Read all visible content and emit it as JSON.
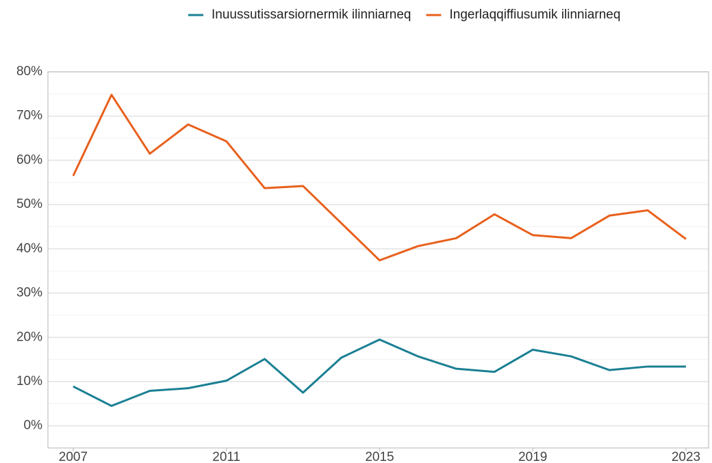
{
  "chart_data": {
    "type": "line",
    "x": [
      2007,
      2008,
      2009,
      2010,
      2011,
      2012,
      2013,
      2014,
      2015,
      2016,
      2017,
      2018,
      2019,
      2020,
      2021,
      2022,
      2023
    ],
    "series": [
      {
        "name": "Inuussutissarsiornermik ilinniarneq",
        "color": "#1a7f93",
        "values": [
          8.9,
          4.5,
          7.9,
          8.5,
          10.2,
          15.1,
          7.5,
          15.4,
          19.5,
          15.7,
          12.9,
          12.2,
          17.2,
          15.7,
          12.6,
          13.4,
          13.4
        ]
      },
      {
        "name": "Ingerlaqqiffiusumik ilinniarneq",
        "color": "#e8601c",
        "values": [
          56.5,
          74.8,
          61.5,
          68.1,
          64.3,
          53.7,
          54.2,
          45.8,
          37.4,
          40.6,
          42.4,
          47.8,
          43.1,
          42.4,
          47.5,
          48.7,
          42.2
        ]
      }
    ],
    "xlim": [
      2006.34,
      2023.59
    ],
    "xticks": [
      2007,
      2011,
      2015,
      2019,
      2023
    ],
    "ylim": [
      -5,
      80
    ],
    "yticks": [
      {
        "value": 0,
        "label": "0%"
      },
      {
        "value": 10,
        "label": "10%"
      },
      {
        "value": 20,
        "label": "20%"
      },
      {
        "value": 30,
        "label": "30%"
      },
      {
        "value": 40,
        "label": "40%"
      },
      {
        "value": 50,
        "label": "50%"
      },
      {
        "value": 60,
        "label": "60%"
      },
      {
        "value": 70,
        "label": "70%"
      },
      {
        "value": 80,
        "label": "80%"
      }
    ],
    "grid": true,
    "legend": "top"
  }
}
